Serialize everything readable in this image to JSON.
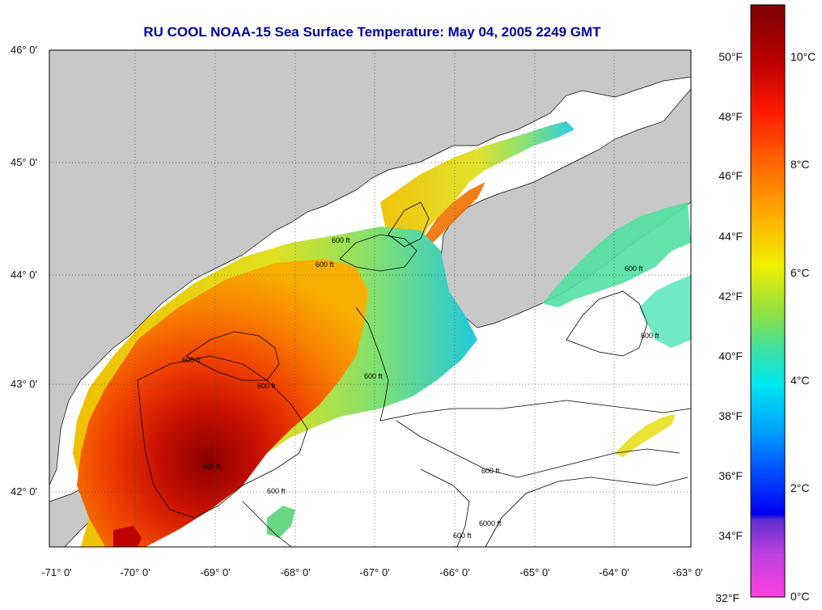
{
  "title": "RU COOL  NOAA-15  Sea Surface Temperature:  May 04, 2005 2249 GMT",
  "latitude_labels": [
    "46° 0'",
    "45° 0'",
    "44° 0'",
    "43° 0'",
    "42° 0'"
  ],
  "longitude_labels": [
    "-71° 0'",
    "-70° 0'",
    "-69° 0'",
    "-68° 0'",
    "-67° 0'",
    "-66° 0'",
    "-65° 0'",
    "-64° 0'",
    "-63° 0'"
  ],
  "contour_labels": [
    "600 ft",
    "600 ft",
    "600 ft",
    "600 ft",
    "600 ft",
    "600 ft",
    "600 ft",
    "600 ft",
    "600 ft",
    "600 ft",
    "6000 ft",
    "600 ft"
  ],
  "colorbar": {
    "fahrenheit_labels": [
      "50°F",
      "48°F",
      "46°F",
      "44°F",
      "42°F",
      "40°F",
      "38°F",
      "36°F",
      "34°F",
      "32°F"
    ],
    "celsius_labels": [
      "10°C",
      "8°C",
      "6°C",
      "4°C",
      "2°C",
      "0°C"
    ]
  },
  "colors": {
    "land": "#c8c8c8",
    "no_data": "#ffffff",
    "title": "#0000a0",
    "warm": "#b00000",
    "cool": "#20c8f0"
  }
}
